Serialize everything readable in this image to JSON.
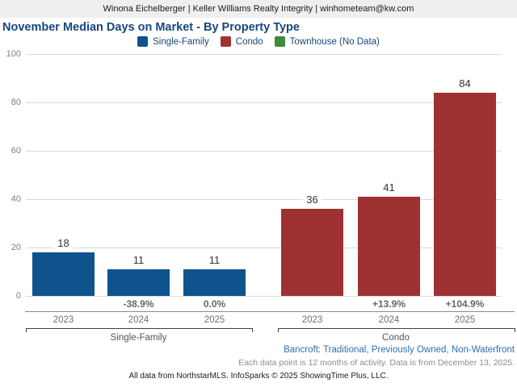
{
  "header": {
    "contact_line": "Winona Eichelberger | Keller Williams Realty Integrity | winhometeam@kw.com"
  },
  "title": "November Median Days on Market - By Property Type",
  "chart_data": {
    "type": "bar",
    "title": "November Median Days on Market - By Property Type",
    "xlabel": "",
    "ylabel": "",
    "ylim": [
      0,
      100
    ],
    "yticks": [
      0,
      20,
      40,
      60,
      80,
      100
    ],
    "grid": true,
    "legend_position": "top-center",
    "legend": [
      {
        "label": "Single-Family",
        "color": "#0e538c"
      },
      {
        "label": "Condo",
        "color": "#9e3132"
      },
      {
        "label": "Townhouse (No Data)",
        "color": "#3e8a3e"
      }
    ],
    "categories": [
      "2023",
      "2024",
      "2025"
    ],
    "groups": [
      {
        "label": "Single-Family",
        "color": "#0e538c",
        "bars": [
          {
            "year": "2023",
            "value": 18,
            "pct_change": ""
          },
          {
            "year": "2024",
            "value": 11,
            "pct_change": "-38.9%"
          },
          {
            "year": "2025",
            "value": 11,
            "pct_change": "0.0%"
          }
        ]
      },
      {
        "label": "Condo",
        "color": "#9e3132",
        "bars": [
          {
            "year": "2023",
            "value": 36,
            "pct_change": ""
          },
          {
            "year": "2024",
            "value": 41,
            "pct_change": "+13.9%"
          },
          {
            "year": "2025",
            "value": 84,
            "pct_change": "+104.9%"
          }
        ]
      }
    ]
  },
  "footnotes": {
    "context_line": "Bancroft: Traditional, Previously Owned, Non-Waterfront",
    "data_note": "Each data point is 12 months of activity. Data is from December 13, 2025.",
    "copyright": "All data from NorthstarMLS. InfoSparks © 2025 ShowingTime Plus, LLC."
  },
  "colors": {
    "single_family": "#0e538c",
    "condo": "#9e3132",
    "townhouse": "#3e8a3e",
    "title_text": "#17477b",
    "context_text": "#2e6eb5",
    "topbar_background": "#efefef"
  }
}
